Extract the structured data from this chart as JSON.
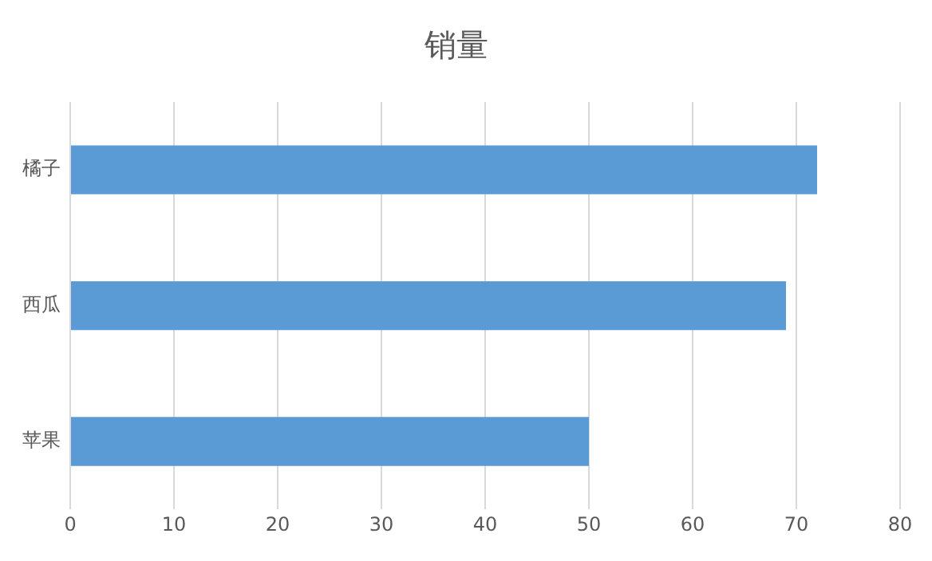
{
  "chart_data": {
    "type": "bar",
    "orientation": "horizontal",
    "title": "销量",
    "categories": [
      "橘子",
      "西瓜",
      "苹果"
    ],
    "values": [
      72,
      69,
      50
    ],
    "color": "#5b9bd5",
    "xlim": [
      0,
      80
    ],
    "xticks": [
      0,
      10,
      20,
      30,
      40,
      50,
      60,
      70,
      80
    ],
    "grid": "x",
    "legend": false
  }
}
